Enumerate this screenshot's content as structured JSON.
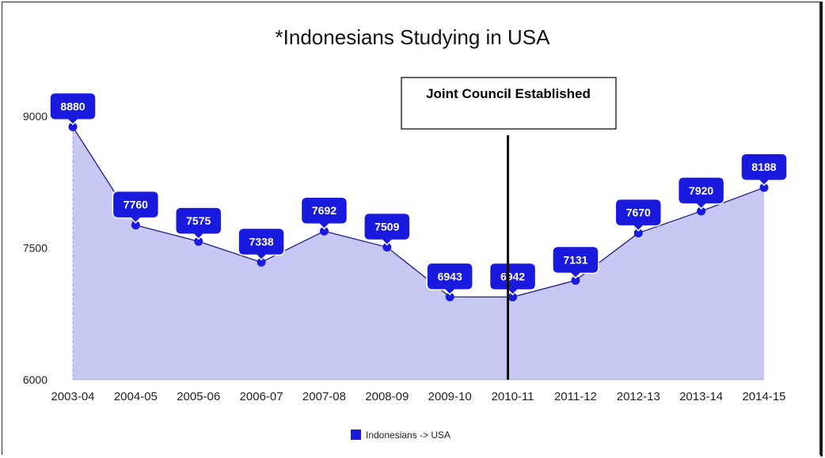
{
  "chart_data": {
    "type": "area",
    "title": "*Indonesians Studying in USA",
    "categories": [
      "2003-04",
      "2004-05",
      "2005-06",
      "2006-07",
      "2007-08",
      "2008-09",
      "2009-10",
      "2010-11",
      "2011-12",
      "2012-13",
      "2013-14",
      "2014-15"
    ],
    "series": [
      {
        "name": "Indonesians -> USA",
        "values": [
          8880,
          7760,
          7575,
          7338,
          7692,
          7509,
          6943,
          6942,
          7131,
          7670,
          7920,
          8188
        ],
        "color": "#1a1adf",
        "fill_color": "#c8c8f4"
      }
    ],
    "ylim": [
      6000,
      9500
    ],
    "yticks": [
      "6000",
      "7500",
      "9000"
    ],
    "ytick_values": [
      6000,
      7500,
      9000
    ],
    "data_labels": [
      "8880",
      "7760",
      "7575",
      "7338",
      "7692",
      "7509",
      "6943",
      "6942",
      "7131",
      "7670",
      "7920",
      "8188"
    ],
    "legend": "bottom-center",
    "annotation": {
      "text": "Joint Council Established",
      "at_category": "2010-11"
    }
  }
}
